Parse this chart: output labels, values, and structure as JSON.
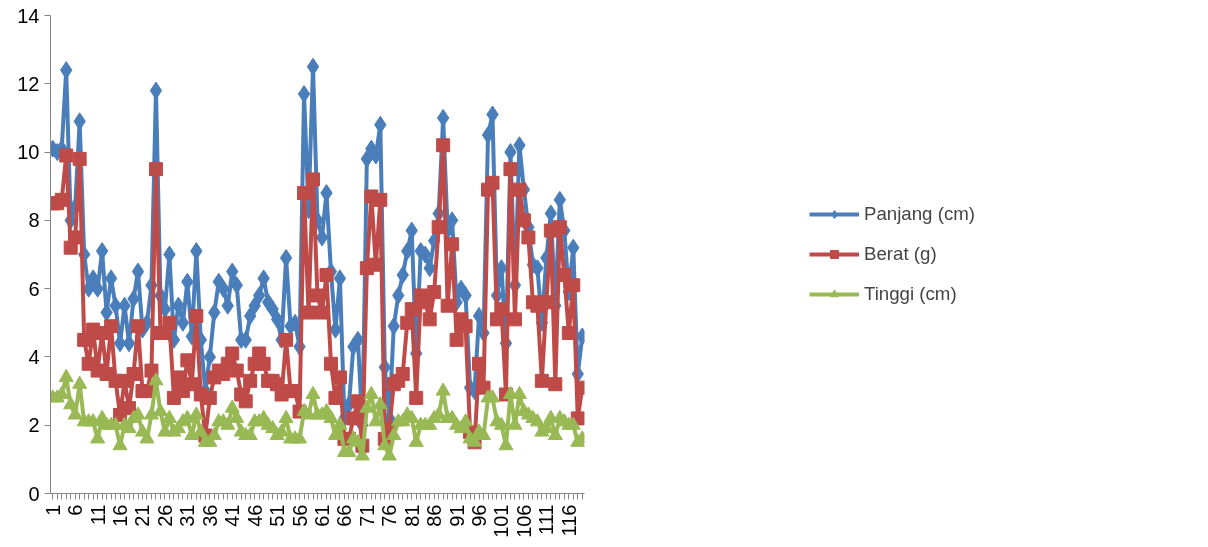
{
  "chart_data": {
    "type": "line",
    "categories": [
      "1",
      null,
      null,
      null,
      null,
      "6",
      null,
      null,
      null,
      null,
      "11",
      null,
      null,
      null,
      null,
      "16",
      null,
      null,
      null,
      null,
      "21",
      null,
      null,
      null,
      null,
      "26",
      null,
      null,
      null,
      null,
      "31",
      null,
      null,
      null,
      null,
      "36",
      null,
      null,
      null,
      null,
      "41",
      null,
      null,
      null,
      null,
      "46",
      null,
      null,
      null,
      null,
      "51",
      null,
      null,
      null,
      null,
      "56",
      null,
      null,
      null,
      null,
      "61",
      null,
      null,
      null,
      null,
      "66",
      null,
      null,
      null,
      null,
      "71",
      null,
      null,
      null,
      null,
      "76",
      null,
      null,
      null,
      null,
      "81",
      null,
      null,
      null,
      null,
      "86",
      null,
      null,
      null,
      null,
      "91",
      null,
      null,
      null,
      null,
      "96",
      null,
      null,
      null,
      null,
      "101",
      null,
      null,
      null,
      null,
      "106",
      null,
      null,
      null,
      null,
      "111",
      null,
      null,
      null,
      null,
      "116",
      null,
      null,
      null
    ],
    "series": [
      {
        "name": "Panjang (cm)",
        "color": "#4a7ebb",
        "marker": "diamond",
        "values": [
          10.1,
          10.0,
          10.1,
          12.4,
          8.0,
          8.4,
          10.9,
          7.0,
          6.0,
          6.3,
          6.0,
          7.1,
          5.3,
          6.3,
          5.5,
          4.4,
          5.5,
          4.4,
          5.7,
          6.5,
          4.8,
          5.0,
          6.1,
          11.8,
          5.8,
          5.4,
          7.0,
          4.5,
          5.5,
          5.0,
          6.2,
          4.6,
          7.1,
          4.5,
          3.0,
          4.0,
          5.3,
          6.2,
          6.0,
          5.5,
          6.5,
          6.1,
          4.5,
          4.5,
          5.2,
          5.5,
          5.8,
          6.3,
          5.6,
          5.4,
          5.1,
          4.5,
          6.9,
          4.9,
          5.0,
          4.3,
          11.7,
          8.3,
          12.5,
          8.0,
          7.5,
          8.8,
          6.5,
          4.8,
          6.3,
          2.2,
          2.6,
          4.3,
          4.5,
          2.0,
          9.8,
          10.1,
          9.9,
          10.8,
          3.7,
          2.2,
          4.9,
          5.8,
          6.4,
          7.1,
          7.7,
          4.1,
          7.1,
          7.0,
          6.6,
          7.4,
          8.2,
          11.0,
          7.7,
          8.0,
          5.6,
          6.0,
          5.8,
          3.1,
          3.0,
          5.2,
          4.7,
          10.5,
          11.1,
          5.8,
          6.6,
          4.4,
          10.0,
          6.1,
          10.2,
          8.9,
          7.8,
          6.7,
          6.6,
          5.0,
          6.9,
          8.2,
          5.5,
          8.6,
          7.7,
          5.9,
          7.2,
          3.5,
          4.6
        ]
      },
      {
        "name": "Berat (g)",
        "color": "#be4b48",
        "marker": "square",
        "values": [
          8.5,
          8.5,
          8.6,
          9.9,
          7.2,
          7.5,
          9.8,
          4.5,
          3.8,
          4.8,
          3.6,
          4.7,
          3.5,
          4.9,
          3.3,
          2.3,
          3.3,
          2.5,
          3.5,
          4.9,
          3.0,
          3.0,
          3.6,
          9.5,
          4.7,
          4.7,
          5.0,
          2.8,
          3.4,
          3.0,
          3.9,
          3.2,
          5.2,
          2.9,
          1.7,
          2.8,
          3.4,
          3.6,
          3.5,
          3.8,
          4.1,
          3.6,
          2.9,
          2.7,
          3.3,
          3.8,
          4.1,
          3.8,
          3.3,
          3.3,
          3.2,
          2.9,
          4.5,
          3.0,
          3.0,
          2.4,
          8.8,
          5.3,
          9.2,
          5.8,
          5.3,
          6.4,
          3.8,
          2.8,
          3.4,
          1.6,
          1.6,
          2.2,
          2.7,
          1.4,
          6.6,
          8.7,
          6.7,
          8.6,
          1.6,
          1.9,
          3.2,
          3.3,
          3.5,
          5.0,
          5.4,
          2.8,
          5.8,
          5.6,
          5.1,
          5.9,
          7.8,
          10.2,
          5.5,
          7.3,
          4.5,
          5.1,
          4.9,
          1.8,
          1.5,
          3.8,
          3.1,
          8.9,
          9.1,
          5.1,
          5.4,
          2.9,
          9.5,
          5.1,
          8.9,
          8.0,
          7.5,
          5.6,
          5.5,
          3.3,
          5.6,
          7.7,
          3.2,
          7.8,
          6.4,
          4.7,
          6.1,
          2.2,
          3.1
        ]
      },
      {
        "name": "Tinggi (cm)",
        "color": "#98b954",
        "marker": "triangle",
        "values": [
          2.8,
          2.8,
          2.9,
          3.4,
          2.6,
          2.3,
          3.2,
          2.1,
          2.1,
          2.1,
          1.6,
          2.2,
          2.0,
          2.0,
          2.0,
          1.4,
          2.0,
          1.9,
          2.2,
          2.3,
          1.8,
          1.6,
          2.3,
          3.3,
          2.4,
          1.8,
          2.2,
          1.8,
          1.9,
          2.1,
          2.2,
          1.7,
          2.3,
          1.8,
          1.5,
          1.5,
          1.7,
          2.1,
          2.1,
          2.0,
          2.5,
          2.2,
          1.8,
          1.7,
          1.7,
          2.1,
          2.1,
          2.2,
          2.0,
          1.9,
          1.7,
          1.8,
          2.2,
          1.6,
          1.6,
          1.6,
          2.4,
          2.3,
          2.9,
          2.3,
          2.3,
          2.4,
          2.2,
          1.7,
          2.0,
          1.2,
          1.2,
          1.6,
          1.5,
          1.1,
          2.5,
          2.9,
          2.1,
          2.6,
          1.4,
          1.1,
          1.7,
          2.1,
          2.1,
          2.3,
          2.2,
          1.5,
          2.0,
          2.0,
          2.0,
          2.2,
          2.3,
          3.0,
          2.2,
          2.2,
          2.0,
          1.9,
          2.1,
          1.6,
          1.5,
          1.8,
          1.7,
          2.8,
          2.8,
          2.1,
          2.0,
          1.4,
          2.9,
          2.0,
          2.9,
          2.4,
          2.3,
          2.2,
          2.1,
          1.8,
          1.9,
          2.2,
          1.7,
          2.2,
          2.1,
          2.0,
          2.0,
          1.5,
          1.6
        ]
      }
    ],
    "ylim": [
      0,
      14
    ],
    "yticks": [
      0,
      2,
      4,
      6,
      8,
      10,
      12,
      14
    ],
    "legend": "right",
    "line_style": "solid"
  }
}
